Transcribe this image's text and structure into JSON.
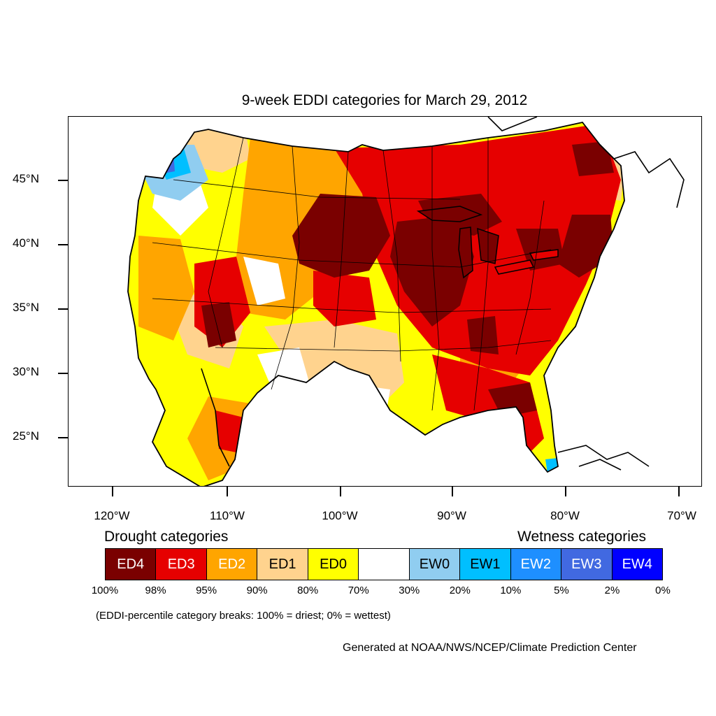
{
  "map": {
    "title": "9-week EDDI categories for March 29, 2012",
    "lat_labels": [
      "45°N",
      "40°N",
      "35°N",
      "30°N",
      "25°N"
    ],
    "lon_labels": [
      "120°W",
      "110°W",
      "100°W",
      "90°W",
      "80°W",
      "70°W"
    ],
    "region": "Contiguous United States",
    "colors": {
      "ED4": "#7a0000",
      "ED3": "#e60000",
      "ED2": "#ffa500",
      "ED1": "#ffd38e",
      "ED0": "#ffff00",
      "neutral": "#ffffff",
      "EW0": "#90cdf0",
      "EW1": "#00bfff",
      "EW2": "#1e8fff",
      "EW3": "#4169e1",
      "EW4": "#0000ff"
    }
  },
  "legend": {
    "drought_heading": "Drought categories",
    "wetness_heading": "Wetness categories",
    "categories": [
      {
        "label": "ED4",
        "color": "#7a0000",
        "text_color": "#ffffff"
      },
      {
        "label": "ED3",
        "color": "#e60000",
        "text_color": "#ffffff"
      },
      {
        "label": "ED2",
        "color": "#ffa500",
        "text_color": "#ffffff"
      },
      {
        "label": "ED1",
        "color": "#ffd38e",
        "text_color": "#000000"
      },
      {
        "label": "ED0",
        "color": "#ffff00",
        "text_color": "#000000"
      },
      {
        "label": "",
        "color": "#ffffff",
        "text_color": "#000000"
      },
      {
        "label": "EW0",
        "color": "#90cdf0",
        "text_color": "#000000"
      },
      {
        "label": "EW1",
        "color": "#00bfff",
        "text_color": "#000000"
      },
      {
        "label": "EW2",
        "color": "#1e8fff",
        "text_color": "#ffffff"
      },
      {
        "label": "EW3",
        "color": "#4169e1",
        "text_color": "#ffffff"
      },
      {
        "label": "EW4",
        "color": "#0000ff",
        "text_color": "#ffffff"
      }
    ],
    "percentiles": [
      "100%",
      "98%",
      "95%",
      "90%",
      "80%",
      "70%",
      "30%",
      "20%",
      "10%",
      "5%",
      "2%",
      "0%"
    ],
    "note": "(EDDI-percentile category breaks: 100% = driest; 0% = wettest)"
  },
  "footer": {
    "credit": "Generated at NOAA/NWS/NCEP/Climate Prediction Center"
  }
}
